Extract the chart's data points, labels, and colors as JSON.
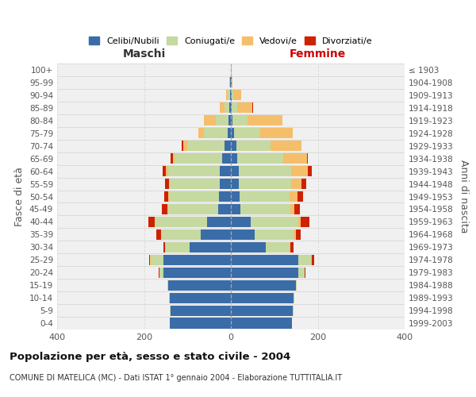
{
  "age_groups": [
    "0-4",
    "5-9",
    "10-14",
    "15-19",
    "20-24",
    "25-29",
    "30-34",
    "35-39",
    "40-44",
    "45-49",
    "50-54",
    "55-59",
    "60-64",
    "65-69",
    "70-74",
    "75-79",
    "80-84",
    "85-89",
    "90-94",
    "95-99",
    "100+"
  ],
  "birth_years": [
    "1999-2003",
    "1994-1998",
    "1989-1993",
    "1984-1988",
    "1979-1983",
    "1974-1978",
    "1969-1973",
    "1964-1968",
    "1959-1963",
    "1954-1958",
    "1949-1953",
    "1944-1948",
    "1939-1943",
    "1934-1938",
    "1929-1933",
    "1924-1928",
    "1919-1923",
    "1914-1918",
    "1909-1913",
    "1904-1908",
    "≤ 1903"
  ],
  "colors": {
    "celibi": "#3A6CA8",
    "coniugati": "#C5D9A0",
    "vedovi": "#F5BE6A",
    "divorziati": "#CC2200"
  },
  "maschi": {
    "celibi": [
      140,
      138,
      140,
      145,
      155,
      155,
      95,
      70,
      55,
      30,
      28,
      25,
      25,
      20,
      15,
      8,
      5,
      3,
      2,
      1,
      0
    ],
    "coniugati": [
      1,
      2,
      2,
      2,
      10,
      30,
      55,
      90,
      120,
      115,
      115,
      115,
      120,
      110,
      85,
      55,
      30,
      12,
      5,
      1,
      0
    ],
    "vedovi": [
      0,
      0,
      0,
      0,
      0,
      1,
      1,
      1,
      1,
      1,
      1,
      2,
      4,
      4,
      10,
      12,
      28,
      10,
      4,
      1,
      0
    ],
    "divorziati": [
      0,
      0,
      0,
      0,
      1,
      2,
      5,
      10,
      14,
      12,
      10,
      10,
      8,
      5,
      4,
      0,
      0,
      0,
      0,
      0,
      0
    ]
  },
  "femmine": {
    "celibi": [
      140,
      142,
      145,
      150,
      155,
      155,
      80,
      55,
      45,
      22,
      20,
      18,
      18,
      15,
      12,
      8,
      4,
      2,
      1,
      1,
      0
    ],
    "coniugati": [
      1,
      2,
      2,
      2,
      15,
      30,
      55,
      90,
      110,
      115,
      115,
      120,
      120,
      105,
      80,
      60,
      35,
      12,
      4,
      0,
      0
    ],
    "vedovi": [
      0,
      0,
      0,
      0,
      0,
      2,
      2,
      4,
      5,
      10,
      18,
      25,
      40,
      55,
      70,
      75,
      80,
      35,
      18,
      2,
      1
    ],
    "divorziati": [
      0,
      0,
      0,
      0,
      2,
      5,
      8,
      12,
      20,
      12,
      14,
      10,
      8,
      2,
      0,
      0,
      0,
      2,
      1,
      0,
      0
    ]
  },
  "title": "Popolazione per età, sesso e stato civile - 2004",
  "subtitle": "COMUNE DI MATELICA (MC) - Dati ISTAT 1° gennaio 2004 - Elaborazione TUTTITALIA.IT",
  "xlabel_left": "Maschi",
  "xlabel_right": "Femmine",
  "ylabel_left": "Fasce di età",
  "ylabel_right": "Anni di nascita",
  "xlim": 400,
  "legend_labels": [
    "Celibi/Nubili",
    "Coniugati/e",
    "Vedovi/e",
    "Divorziati/e"
  ],
  "background_color": "#ffffff",
  "plot_bg_color": "#f0f0f0",
  "grid_color": "#dddddd"
}
